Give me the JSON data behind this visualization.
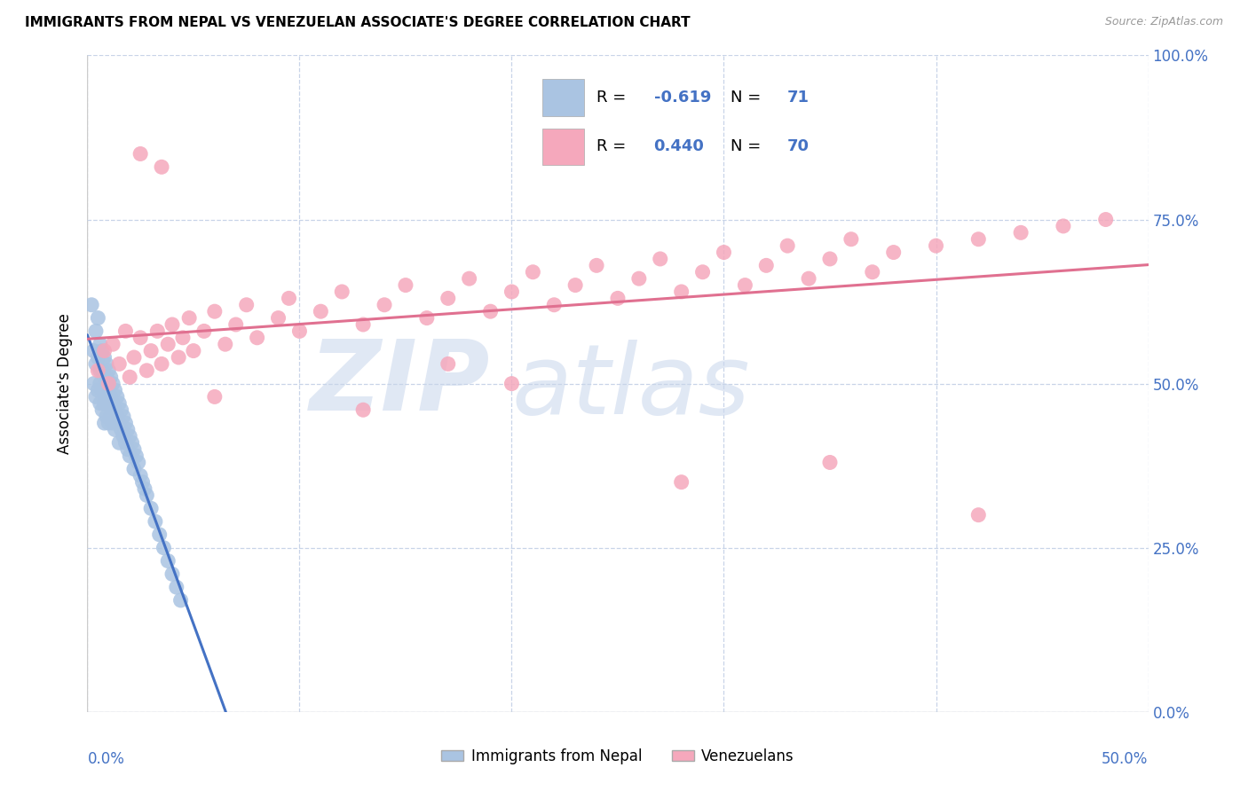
{
  "title": "IMMIGRANTS FROM NEPAL VS VENEZUELAN ASSOCIATE'S DEGREE CORRELATION CHART",
  "source": "Source: ZipAtlas.com",
  "ylabel": "Associate's Degree",
  "ytick_labels": [
    "0.0%",
    "25.0%",
    "50.0%",
    "75.0%",
    "100.0%"
  ],
  "ytick_vals": [
    0.0,
    0.25,
    0.5,
    0.75,
    1.0
  ],
  "xtick_labels": [
    "0.0%",
    "",
    "",
    "",
    "",
    "50.0%"
  ],
  "xtick_vals": [
    0.0,
    0.1,
    0.2,
    0.3,
    0.4,
    0.5
  ],
  "xmin": 0.0,
  "xmax": 0.5,
  "ymin": 0.0,
  "ymax": 1.0,
  "legend_blue_label": "Immigrants from Nepal",
  "legend_pink_label": "Venezuelans",
  "R_blue": -0.619,
  "N_blue": 71,
  "R_pink": 0.44,
  "N_pink": 70,
  "blue_color": "#aac4e2",
  "pink_color": "#f5a8bc",
  "blue_line_color": "#4472c4",
  "pink_line_color": "#e07090",
  "watermark_zip_color": "#ccd9ee",
  "watermark_atlas_color": "#ccd9ee",
  "nepal_x": [
    0.002,
    0.003,
    0.003,
    0.004,
    0.004,
    0.004,
    0.005,
    0.005,
    0.005,
    0.006,
    0.006,
    0.006,
    0.006,
    0.007,
    0.007,
    0.007,
    0.007,
    0.008,
    0.008,
    0.008,
    0.008,
    0.008,
    0.009,
    0.009,
    0.009,
    0.009,
    0.01,
    0.01,
    0.01,
    0.01,
    0.011,
    0.011,
    0.011,
    0.012,
    0.012,
    0.012,
    0.013,
    0.013,
    0.013,
    0.014,
    0.014,
    0.015,
    0.015,
    0.015,
    0.016,
    0.016,
    0.017,
    0.017,
    0.018,
    0.018,
    0.019,
    0.019,
    0.02,
    0.02,
    0.021,
    0.022,
    0.022,
    0.023,
    0.024,
    0.025,
    0.026,
    0.027,
    0.028,
    0.03,
    0.032,
    0.034,
    0.036,
    0.038,
    0.04,
    0.042,
    0.044
  ],
  "nepal_y": [
    0.62,
    0.55,
    0.5,
    0.58,
    0.53,
    0.48,
    0.6,
    0.54,
    0.49,
    0.56,
    0.52,
    0.5,
    0.47,
    0.55,
    0.52,
    0.49,
    0.46,
    0.54,
    0.51,
    0.49,
    0.47,
    0.44,
    0.53,
    0.51,
    0.48,
    0.45,
    0.52,
    0.49,
    0.47,
    0.44,
    0.51,
    0.48,
    0.45,
    0.5,
    0.47,
    0.44,
    0.49,
    0.46,
    0.43,
    0.48,
    0.45,
    0.47,
    0.44,
    0.41,
    0.46,
    0.43,
    0.45,
    0.42,
    0.44,
    0.41,
    0.43,
    0.4,
    0.42,
    0.39,
    0.41,
    0.4,
    0.37,
    0.39,
    0.38,
    0.36,
    0.35,
    0.34,
    0.33,
    0.31,
    0.29,
    0.27,
    0.25,
    0.23,
    0.21,
    0.19,
    0.17
  ],
  "venezuela_x": [
    0.005,
    0.008,
    0.01,
    0.012,
    0.015,
    0.018,
    0.02,
    0.022,
    0.025,
    0.028,
    0.03,
    0.033,
    0.035,
    0.038,
    0.04,
    0.043,
    0.045,
    0.048,
    0.05,
    0.055,
    0.06,
    0.065,
    0.07,
    0.075,
    0.08,
    0.09,
    0.095,
    0.1,
    0.11,
    0.12,
    0.13,
    0.14,
    0.15,
    0.16,
    0.17,
    0.18,
    0.19,
    0.2,
    0.21,
    0.22,
    0.23,
    0.24,
    0.25,
    0.26,
    0.27,
    0.28,
    0.29,
    0.3,
    0.31,
    0.32,
    0.33,
    0.34,
    0.35,
    0.36,
    0.37,
    0.38,
    0.4,
    0.42,
    0.44,
    0.46,
    0.48,
    0.025,
    0.035,
    0.06,
    0.13,
    0.17,
    0.2,
    0.28,
    0.35,
    0.42
  ],
  "venezuela_y": [
    0.52,
    0.55,
    0.5,
    0.56,
    0.53,
    0.58,
    0.51,
    0.54,
    0.57,
    0.52,
    0.55,
    0.58,
    0.53,
    0.56,
    0.59,
    0.54,
    0.57,
    0.6,
    0.55,
    0.58,
    0.61,
    0.56,
    0.59,
    0.62,
    0.57,
    0.6,
    0.63,
    0.58,
    0.61,
    0.64,
    0.59,
    0.62,
    0.65,
    0.6,
    0.63,
    0.66,
    0.61,
    0.64,
    0.67,
    0.62,
    0.65,
    0.68,
    0.63,
    0.66,
    0.69,
    0.64,
    0.67,
    0.7,
    0.65,
    0.68,
    0.71,
    0.66,
    0.69,
    0.72,
    0.67,
    0.7,
    0.71,
    0.72,
    0.73,
    0.74,
    0.75,
    0.85,
    0.83,
    0.48,
    0.46,
    0.53,
    0.5,
    0.35,
    0.38,
    0.3
  ]
}
